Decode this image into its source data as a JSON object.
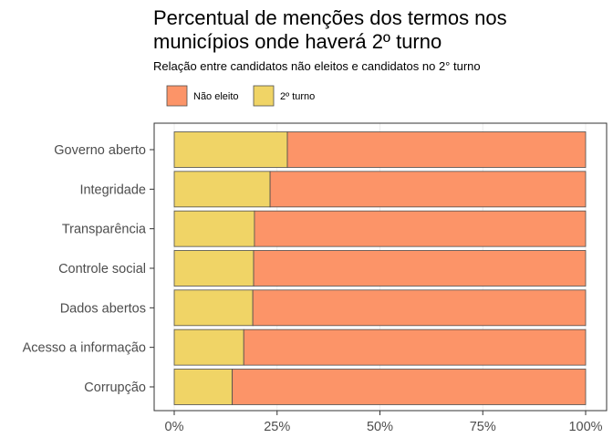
{
  "chart_data": {
    "type": "bar",
    "stacked": true,
    "orientation": "horizontal",
    "title_lines": [
      "Percentual de menções dos termos nos",
      "municípios onde haverá 2º turno"
    ],
    "subtitle": "Relação entre candidatos não eleitos e candidatos no 2° turno",
    "legend": {
      "position": "top-left",
      "entries": [
        {
          "label": "Não eleito",
          "color": "#FC9468"
        },
        {
          "label": "2º turno",
          "color": "#F0D466"
        }
      ]
    },
    "categories": [
      "Governo aberto",
      "Integridade",
      "Transparência",
      "Controle social",
      "Dados abertos",
      "Acesso a informação",
      "Corrupção"
    ],
    "series": [
      {
        "name": "2º turno",
        "color": "#F0D466",
        "values": [
          0.275,
          0.233,
          0.195,
          0.193,
          0.191,
          0.169,
          0.141
        ]
      },
      {
        "name": "Não eleito",
        "color": "#FC9468",
        "values": [
          0.725,
          0.767,
          0.805,
          0.807,
          0.809,
          0.831,
          0.859
        ]
      }
    ],
    "x_ticks": [
      "0%",
      "25%",
      "50%",
      "75%",
      "100%"
    ],
    "xlim": [
      0,
      1
    ],
    "grid": true
  }
}
